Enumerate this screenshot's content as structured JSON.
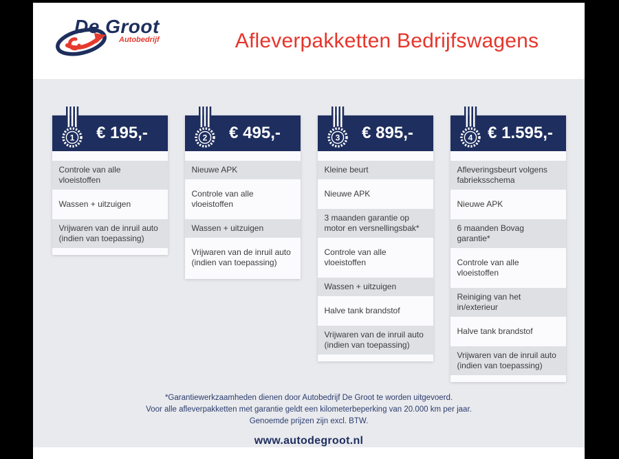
{
  "page": {
    "title": "Afleverpakketten Bedrijfswagens",
    "logo": {
      "name": "De Groot",
      "subtitle": "Autobedrijf"
    },
    "notes": [
      "*Garantiewerkzaamheden dienen door Autobedrijf De Groot te worden uitgevoerd.",
      "Voor alle afleverpakketten met garantie geldt een kilometerbeperking van 20.000 km per jaar.",
      "Genoemde prijzen zijn excl. BTW."
    ],
    "website": "www.autodegroot.nl"
  },
  "colors": {
    "navy": "#1e2e5e",
    "red": "#e6352b",
    "page_gray": "#e9eaee",
    "row_gray": "#dfe0e4",
    "black_bars": "#000000"
  },
  "packages": [
    {
      "rank": "1",
      "price": "€ 195,-",
      "items": [
        "Controle van alle vloeistoffen",
        "Wassen + uitzuigen",
        "Vrijwaren van de inruil auto (indien van toepassing)"
      ]
    },
    {
      "rank": "2",
      "price": "€ 495,-",
      "items": [
        "Nieuwe APK",
        "Controle van alle vloeistoffen",
        "Wassen + uitzuigen",
        "Vrijwaren van de inruil auto (indien van toepassing)"
      ]
    },
    {
      "rank": "3",
      "price": "€ 895,-",
      "items": [
        "Kleine beurt",
        "Nieuwe APK",
        "3 maanden garantie op motor en versnellingsbak*",
        "Controle van alle vloeistoffen",
        "Wassen + uitzuigen",
        "Halve tank brandstof",
        "Vrijwaren van de inruil auto (indien van toepassing)"
      ]
    },
    {
      "rank": "4",
      "price": "€ 1.595,-",
      "items": [
        "Afleveringsbeurt volgens fabrieksschema",
        "Nieuwe APK",
        "6 maanden Bovag garantie*",
        "Controle van alle vloeistoffen",
        "Reiniging van het in/exterieur",
        "Halve tank brandstof",
        "Vrijwaren van de inruil auto (indien van toepassing)"
      ]
    }
  ]
}
